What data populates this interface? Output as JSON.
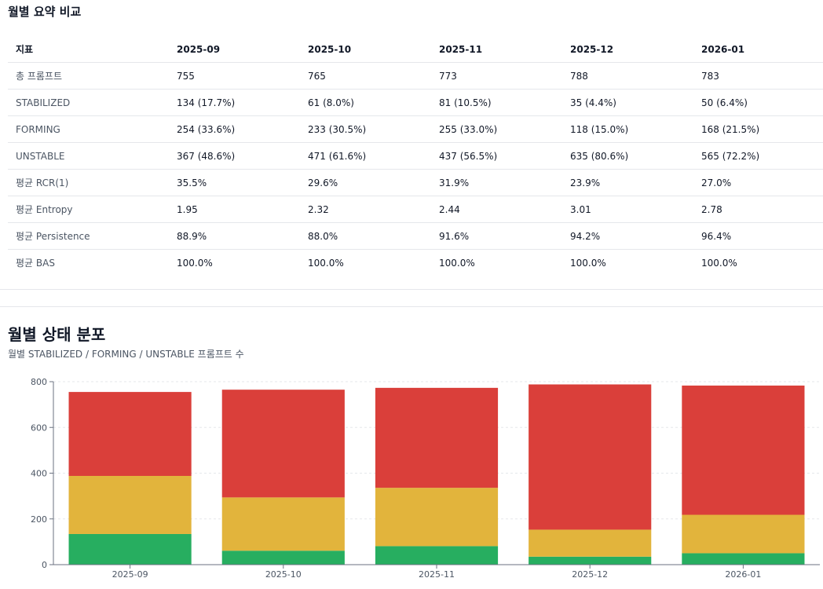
{
  "summary": {
    "title": "월별 요약 비교",
    "header": [
      "지표",
      "2025-09",
      "2025-10",
      "2025-11",
      "2025-12",
      "2026-01"
    ],
    "rows": [
      {
        "label": "총 프롬프트",
        "values": [
          "755",
          "765",
          "773",
          "788",
          "783"
        ]
      },
      {
        "label": "STABILIZED",
        "values": [
          "134 (17.7%)",
          "61 (8.0%)",
          "81 (10.5%)",
          "35 (4.4%)",
          "50 (6.4%)"
        ]
      },
      {
        "label": "FORMING",
        "values": [
          "254 (33.6%)",
          "233 (30.5%)",
          "255 (33.0%)",
          "118 (15.0%)",
          "168 (21.5%)"
        ]
      },
      {
        "label": "UNSTABLE",
        "values": [
          "367 (48.6%)",
          "471 (61.6%)",
          "437 (56.5%)",
          "635 (80.6%)",
          "565 (72.2%)"
        ]
      },
      {
        "label": "평균 RCR(1)",
        "values": [
          "35.5%",
          "29.6%",
          "31.9%",
          "23.9%",
          "27.0%"
        ]
      },
      {
        "label": "평균 Entropy",
        "values": [
          "1.95",
          "2.32",
          "2.44",
          "3.01",
          "2.78"
        ]
      },
      {
        "label": "평균 Persistence",
        "values": [
          "88.9%",
          "88.0%",
          "91.6%",
          "94.2%",
          "96.4%"
        ]
      },
      {
        "label": "평균 BAS",
        "values": [
          "100.0%",
          "100.0%",
          "100.0%",
          "100.0%",
          "100.0%"
        ]
      }
    ]
  },
  "chart_data": {
    "type": "bar",
    "stacked": true,
    "title": "월별 상태 분포",
    "subtitle": "월별 STABILIZED / FORMING / UNSTABLE 프롬프트 수",
    "categories": [
      "2025-09",
      "2025-10",
      "2025-11",
      "2025-12",
      "2026-01"
    ],
    "series": [
      {
        "name": "STABILIZED",
        "color": "#27ae60",
        "values": [
          134,
          61,
          81,
          35,
          50
        ]
      },
      {
        "name": "FORMING",
        "color": "#e2b43c",
        "values": [
          254,
          233,
          255,
          118,
          168
        ]
      },
      {
        "name": "UNSTABLE",
        "color": "#da3f3a",
        "values": [
          367,
          471,
          437,
          635,
          565
        ]
      }
    ],
    "ylim": [
      0,
      800
    ],
    "yticks": [
      0,
      200,
      400,
      600,
      800
    ],
    "grid": true,
    "xlabel": "",
    "ylabel": ""
  }
}
